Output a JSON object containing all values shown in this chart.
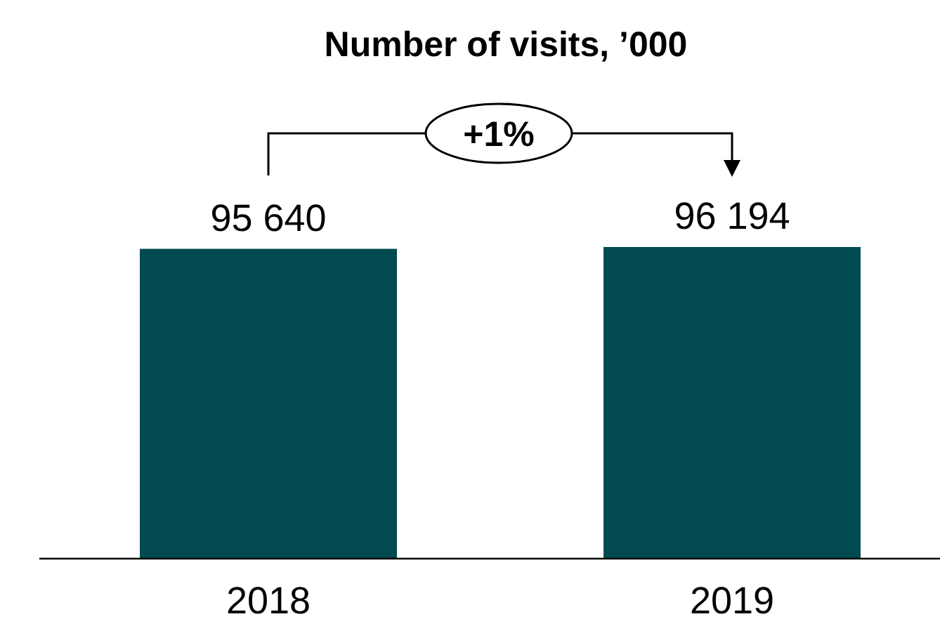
{
  "chart_data": {
    "type": "bar",
    "title": "Number of visits, ’000",
    "categories": [
      "2018",
      "2019"
    ],
    "values": [
      95640,
      96194
    ],
    "value_labels": [
      "95 640",
      "96 194"
    ],
    "color": "#004a50",
    "annotations": [
      "+1%"
    ]
  }
}
